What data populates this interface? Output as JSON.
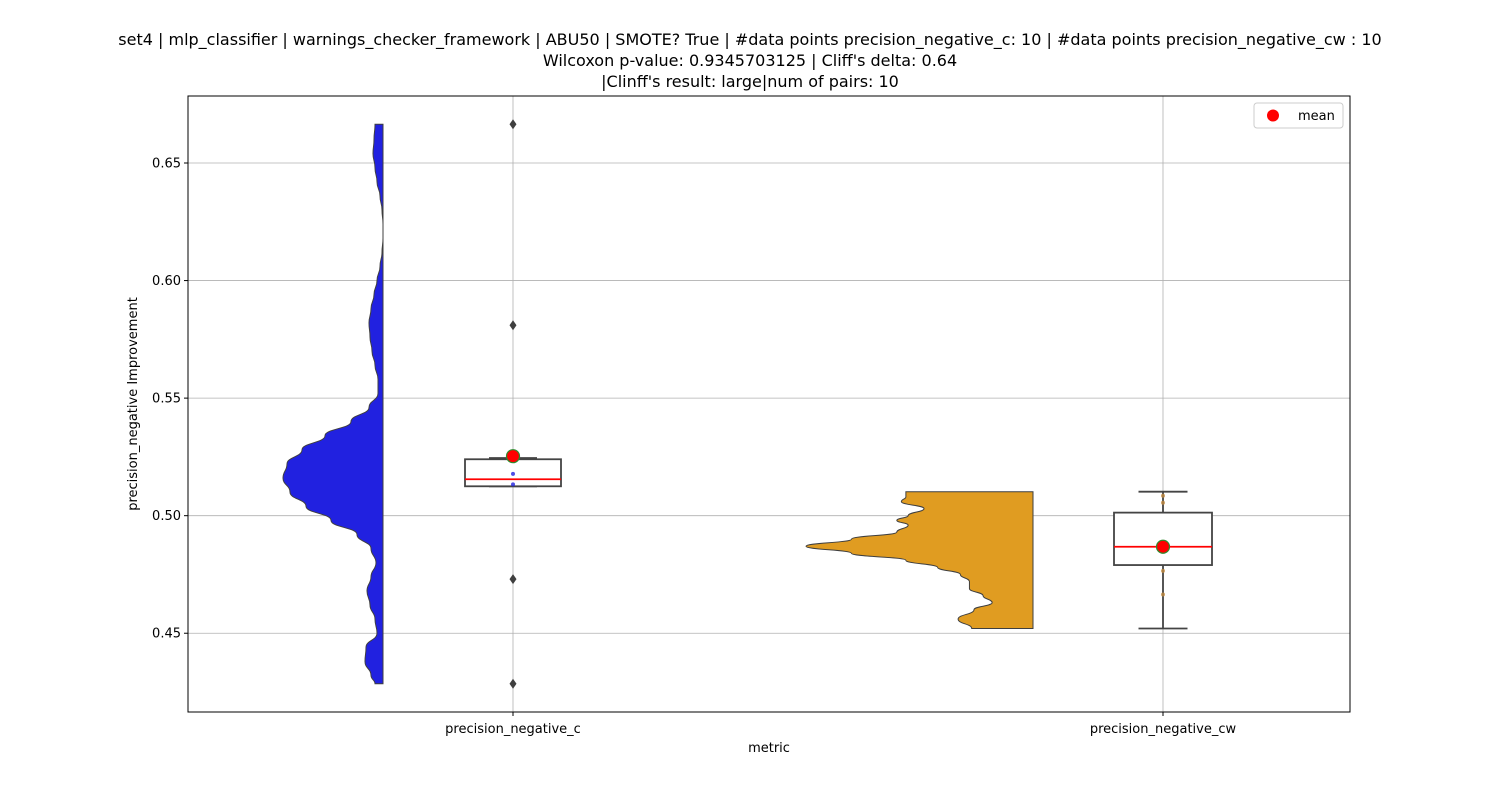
{
  "title": {
    "line1": "set4 | mlp_classifier | warnings_checker_framework | ABU50 | SMOTE? True | #data points precision_negative_c: 10 | #data points precision_negative_cw : 10",
    "line2": "Wilcoxon p-value: 0.9345703125 | Cliff's delta: 0.64",
    "line3": "|Clinff's result: large|num of pairs: 10"
  },
  "chart_data": {
    "type": "violin+box",
    "xlabel": "metric",
    "ylabel": "precision_negative Improvement",
    "ylim": [
      0.4165,
      0.6785
    ],
    "yticks": [
      0.45,
      0.5,
      0.55,
      0.6,
      0.65
    ],
    "ytick_labels": [
      "0.45",
      "0.50",
      "0.55",
      "0.60",
      "0.65"
    ],
    "grid": true,
    "legend": {
      "position": "top-right",
      "entries": [
        {
          "label": "mean",
          "marker": "red-dot"
        }
      ]
    },
    "categories": [
      "precision_negative_c",
      "precision_negative_cw"
    ],
    "series": [
      {
        "name": "precision_negative_c",
        "color": "#2121e0",
        "violin_range": [
          0.4285,
          0.6665
        ],
        "density": [
          [
            0.4285,
            0.08
          ],
          [
            0.432,
            0.12
          ],
          [
            0.438,
            0.18
          ],
          [
            0.444,
            0.17
          ],
          [
            0.45,
            0.06
          ],
          [
            0.456,
            0.08
          ],
          [
            0.462,
            0.13
          ],
          [
            0.468,
            0.16
          ],
          [
            0.474,
            0.12
          ],
          [
            0.48,
            0.07
          ],
          [
            0.486,
            0.12
          ],
          [
            0.492,
            0.26
          ],
          [
            0.498,
            0.52
          ],
          [
            0.504,
            0.77
          ],
          [
            0.51,
            0.93
          ],
          [
            0.516,
            1.0
          ],
          [
            0.522,
            0.96
          ],
          [
            0.528,
            0.81
          ],
          [
            0.534,
            0.58
          ],
          [
            0.54,
            0.32
          ],
          [
            0.546,
            0.14
          ],
          [
            0.552,
            0.05
          ],
          [
            0.558,
            0.05
          ],
          [
            0.564,
            0.08
          ],
          [
            0.57,
            0.11
          ],
          [
            0.576,
            0.13
          ],
          [
            0.582,
            0.14
          ],
          [
            0.588,
            0.12
          ],
          [
            0.594,
            0.09
          ],
          [
            0.6,
            0.06
          ],
          [
            0.606,
            0.03
          ],
          [
            0.612,
            0.01
          ],
          [
            0.618,
            0.0
          ],
          [
            0.624,
            0.0
          ],
          [
            0.63,
            0.01
          ],
          [
            0.636,
            0.03
          ],
          [
            0.642,
            0.06
          ],
          [
            0.648,
            0.08
          ],
          [
            0.654,
            0.1
          ],
          [
            0.66,
            0.09
          ],
          [
            0.6665,
            0.08
          ]
        ],
        "box": {
          "q1": 0.5125,
          "median": 0.5155,
          "q3": 0.524,
          "whisker_low": 0.5125,
          "whisker_high": 0.5245
        },
        "mean": 0.5253,
        "points": [
          0.5133,
          0.5178
        ],
        "outliers": [
          0.6665,
          0.581,
          0.473,
          0.4285
        ]
      },
      {
        "name": "precision_negative_cw",
        "color": "#e09c21",
        "violin_range": [
          0.452,
          0.5102
        ],
        "density": [
          [
            0.452,
            0.27
          ],
          [
            0.456,
            0.33
          ],
          [
            0.46,
            0.26
          ],
          [
            0.463,
            0.18
          ],
          [
            0.466,
            0.22
          ],
          [
            0.469,
            0.28
          ],
          [
            0.472,
            0.28
          ],
          [
            0.475,
            0.32
          ],
          [
            0.478,
            0.42
          ],
          [
            0.481,
            0.56
          ],
          [
            0.484,
            0.8
          ],
          [
            0.487,
            1.0
          ],
          [
            0.49,
            0.8
          ],
          [
            0.493,
            0.6
          ],
          [
            0.496,
            0.55
          ],
          [
            0.498,
            0.6
          ],
          [
            0.5,
            0.55
          ],
          [
            0.503,
            0.48
          ],
          [
            0.506,
            0.58
          ],
          [
            0.508,
            0.56
          ],
          [
            0.5102,
            0.56
          ]
        ],
        "box": {
          "q1": 0.479,
          "median": 0.4868,
          "q3": 0.5013,
          "whisker_low": 0.452,
          "whisker_high": 0.5102
        },
        "mean": 0.4868,
        "points": [
          0.4665,
          0.4765,
          0.5055,
          0.5085
        ],
        "outliers": []
      }
    ]
  }
}
